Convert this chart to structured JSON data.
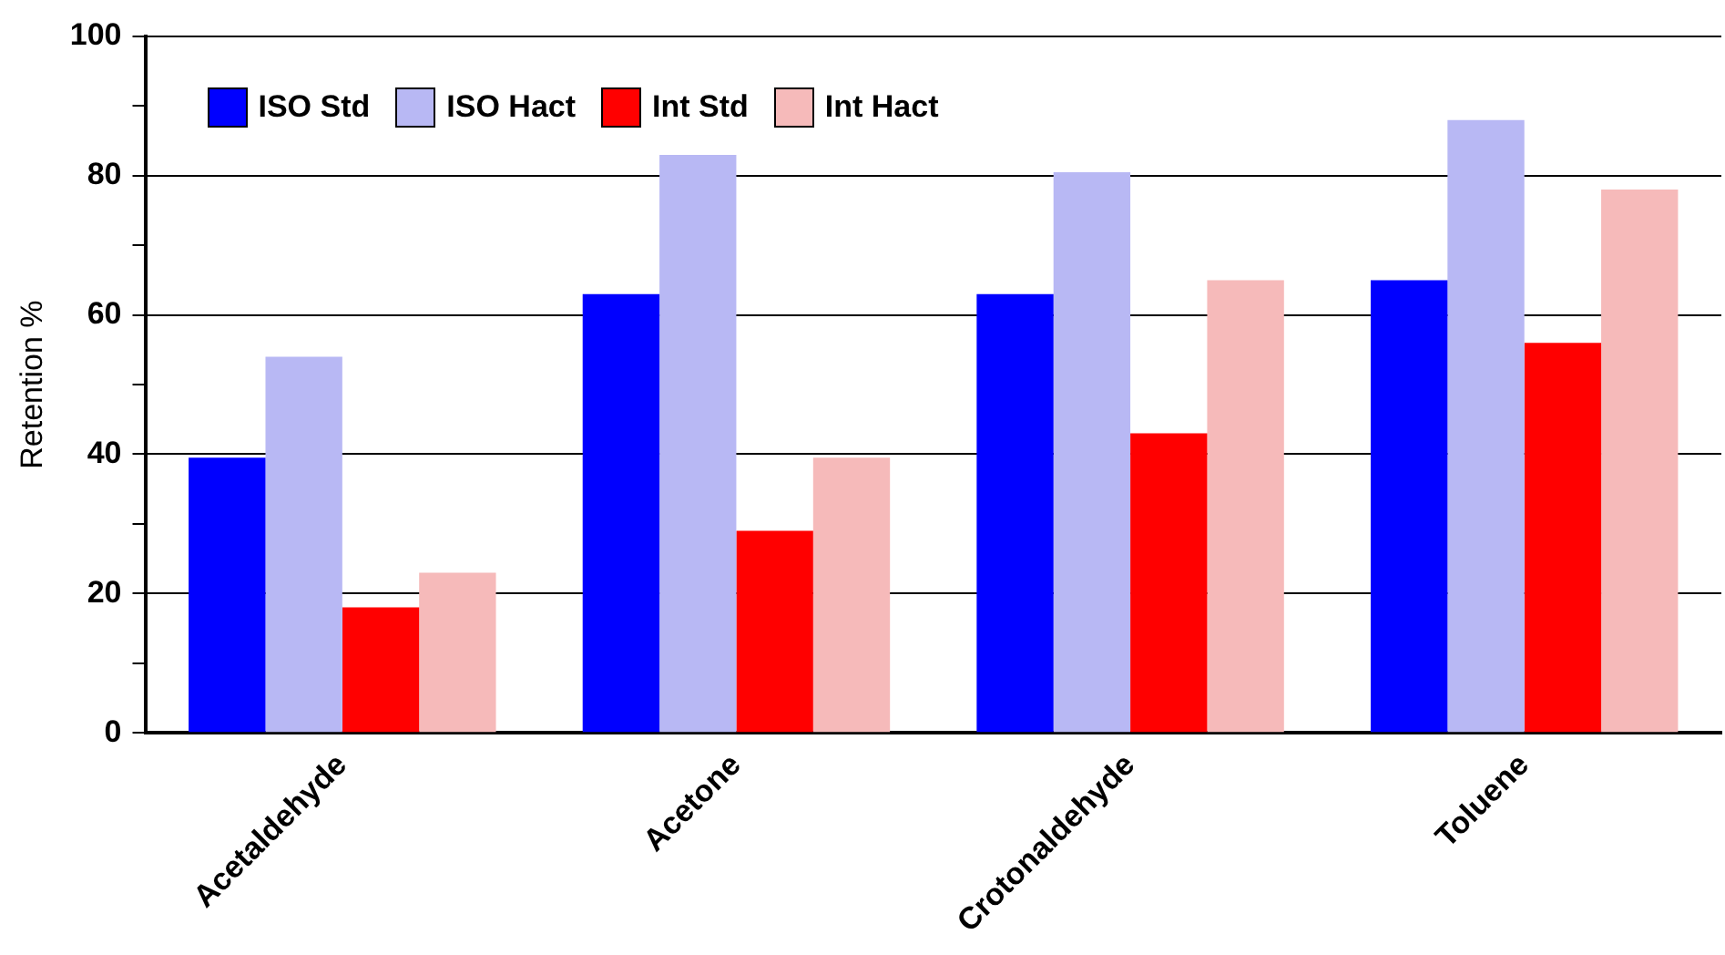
{
  "chart_data": {
    "type": "bar",
    "ylabel": "Retention %",
    "categories": [
      "Acetaldehyde",
      "Acetone",
      "Crotonaldehyde",
      "Toluene"
    ],
    "series": [
      {
        "name": "ISO Std",
        "color": "#0000ff",
        "values": [
          39.5,
          63,
          63,
          65
        ]
      },
      {
        "name": "ISO Hact",
        "color": "#b8b8f4",
        "values": [
          54,
          83,
          80.5,
          88
        ]
      },
      {
        "name": "Int Std",
        "color": "#ff0000",
        "values": [
          18,
          29,
          43,
          56
        ]
      },
      {
        "name": "Int Hact",
        "color": "#f6baba",
        "values": [
          23,
          39.5,
          65,
          78
        ]
      }
    ],
    "ylim": [
      0,
      100
    ],
    "yticks": [
      0,
      {
        "value": 10,
        "label": null
      },
      20,
      {
        "value": 30,
        "label": null
      },
      40,
      {
        "value": 50,
        "label": null
      },
      60,
      {
        "value": 70,
        "label": null
      },
      80,
      {
        "value": 90,
        "label": null
      },
      100
    ],
    "grid": "y",
    "legend": "top left"
  }
}
